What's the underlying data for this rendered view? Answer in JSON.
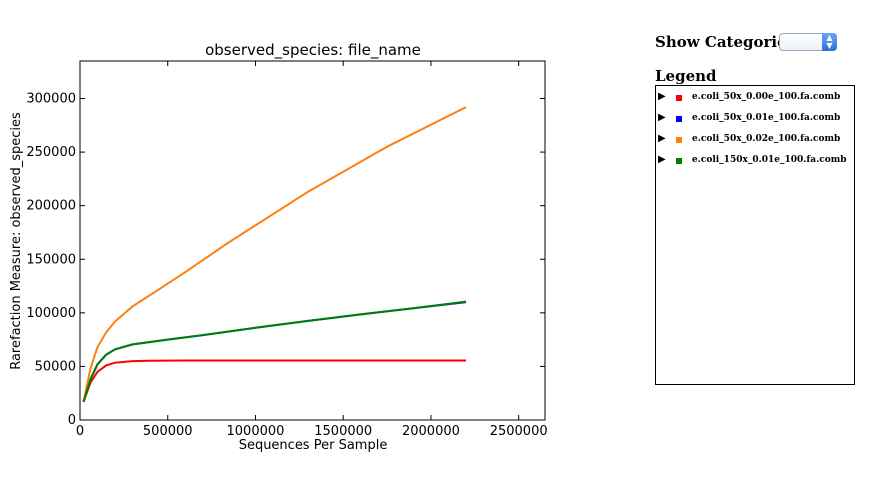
{
  "chart_data": {
    "type": "line",
    "title": "observed_species: file_name",
    "xlabel": "Sequences Per Sample",
    "ylabel": "Rarefaction Measure: observed_species",
    "xlim": [
      0,
      2650000
    ],
    "ylim": [
      0,
      335000
    ],
    "xticks": [
      0,
      500000,
      1000000,
      1500000,
      2000000,
      2500000
    ],
    "xtick_labels": [
      "0",
      "500000",
      "1000000",
      "1500000",
      "2000000",
      "2500000"
    ],
    "yticks": [
      0,
      50000,
      100000,
      150000,
      200000,
      250000,
      300000
    ],
    "ytick_labels": [
      "0",
      "50000",
      "100000",
      "150000",
      "200000",
      "250000",
      "300000"
    ],
    "grid": false,
    "legend_position": "right",
    "series": [
      {
        "name": "e.coli_50x_0.00e_100.fa.comb",
        "color": "#ff0000",
        "x": [
          20000,
          60000,
          100000,
          150000,
          200000,
          300000,
          400000,
          600000,
          1000000,
          1500000,
          2200000
        ],
        "y": [
          17000,
          35000,
          45000,
          51000,
          53500,
          55000,
          55300,
          55500,
          55500,
          55500,
          55500
        ]
      },
      {
        "name": "e.coli_50x_0.01e_100.fa.comb",
        "color": "#0000ff",
        "x": [
          20000,
          60000,
          100000,
          150000,
          200000,
          300000,
          400000,
          500000,
          700000,
          1000000,
          1300000,
          1600000,
          1900000,
          2200000
        ],
        "y": [
          17000,
          38000,
          52000,
          61000,
          66000,
          70500,
          72800,
          75000,
          79200,
          86000,
          92500,
          98500,
          104300,
          110000
        ]
      },
      {
        "name": "e.coli_50x_0.02e_100.fa.comb",
        "color": "#ff7f0e",
        "x": [
          20000,
          60000,
          100000,
          150000,
          200000,
          300000,
          450000,
          600000,
          850000,
          1300000,
          1750000,
          2200000
        ],
        "y": [
          17000,
          48000,
          68000,
          82000,
          92000,
          106000,
          122000,
          138000,
          166000,
          213000,
          255000,
          292000
        ]
      },
      {
        "name": "e.coli_150x_0.01e_100.fa.comb",
        "color": "#008000",
        "x": [
          20000,
          60000,
          100000,
          150000,
          200000,
          300000,
          400000,
          500000,
          700000,
          1000000,
          1300000,
          1600000,
          1900000,
          2200000
        ],
        "y": [
          17000,
          38000,
          52000,
          61000,
          66000,
          70500,
          72800,
          75000,
          79200,
          86000,
          92500,
          98500,
          104300,
          110500
        ]
      }
    ]
  },
  "controls": {
    "show_categories_label": "Show Categories:",
    "category_selected": ""
  },
  "legend": {
    "title": "Legend",
    "items": [
      {
        "label": "e.coli_50x_0.00e_100.fa.comb",
        "color": "#ff0000"
      },
      {
        "label": "e.coli_50x_0.01e_100.fa.comb",
        "color": "#0000ff"
      },
      {
        "label": "e.coli_50x_0.02e_100.fa.comb",
        "color": "#ff7f0e"
      },
      {
        "label": "e.coli_150x_0.01e_100.fa.comb",
        "color": "#008000"
      }
    ]
  }
}
